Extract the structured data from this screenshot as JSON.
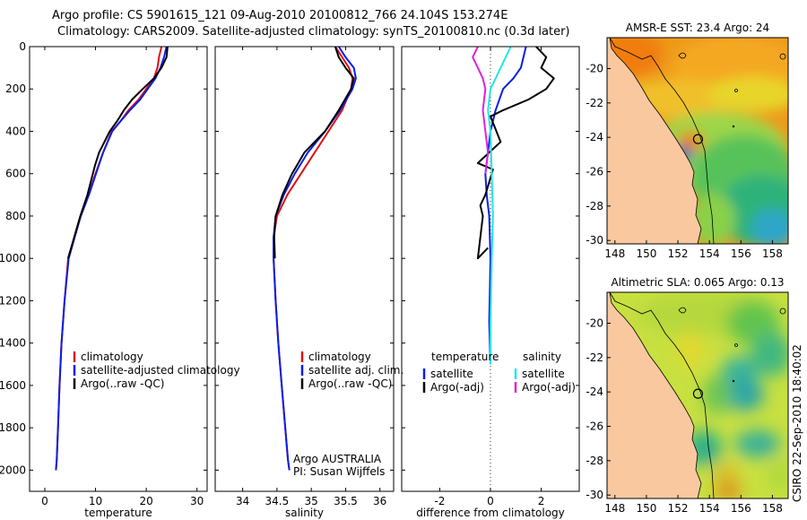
{
  "header": {
    "line1": "Argo profile: CS 5901615_121 09-Aug-2010 20100812_766 24.104S 153.274E",
    "line2": "Climatology: CARS2009. Satellite-adjusted climatology: synTS_20100810.nc (0.3d later)"
  },
  "side_stamp": "CSIRO 22-Sep-2010 18:40:02",
  "colors": {
    "climatology": "#e01010",
    "satellite": "#0a1ee6",
    "argo": "#000000",
    "sal_satellite": "#22e6e6",
    "sal_argo": "#e020e0",
    "land": "#f9c89f"
  },
  "chart_data": [
    {
      "type": "line",
      "id": "temperature",
      "xlabel": "temperature",
      "ylabel": "",
      "xlim": [
        -3,
        32
      ],
      "ylim": [
        2100,
        0
      ],
      "xticks": [
        0,
        10,
        20,
        30
      ],
      "xtick_labels": [
        "0",
        "10",
        "20",
        "30"
      ],
      "yticks": [
        0,
        200,
        400,
        600,
        800,
        1000,
        1200,
        1400,
        1600,
        1800,
        2000
      ],
      "ytick_labels": [
        "0",
        "200",
        "400",
        "600",
        "800",
        "1000",
        "1200",
        "1400",
        "1600",
        "1800",
        "2000"
      ],
      "legend": [
        "climatology",
        "satellite-adjusted climatology",
        "Argo(..raw -QC)"
      ],
      "legend_position": "lower-right",
      "series": [
        {
          "name": "climatology",
          "color": "#e01010",
          "x": [
            23.0,
            22.5,
            22.2,
            21.5,
            20.0,
            18.5,
            16.5,
            15.0,
            13.2,
            11.5,
            10.0,
            8.6,
            7.0,
            5.8,
            4.6,
            3.9,
            3.3,
            2.9,
            2.6,
            2.35,
            2.2
          ],
          "y": [
            0,
            50,
            100,
            150,
            200,
            250,
            300,
            350,
            400,
            500,
            600,
            700,
            800,
            900,
            1000,
            1200,
            1400,
            1600,
            1800,
            1950,
            2000
          ]
        },
        {
          "name": "satellite-adjusted climatology",
          "color": "#0a1ee6",
          "x": [
            24.0,
            23.5,
            22.8,
            21.8,
            20.3,
            18.8,
            16.8,
            15.0,
            13.3,
            11.5,
            10.1,
            8.7,
            7.1,
            5.9,
            4.7,
            3.9,
            3.3,
            2.9,
            2.6,
            2.35,
            2.2
          ],
          "y": [
            0,
            50,
            100,
            150,
            200,
            250,
            300,
            350,
            400,
            500,
            600,
            700,
            800,
            900,
            1000,
            1200,
            1400,
            1600,
            1800,
            1950,
            2000
          ]
        },
        {
          "name": "Argo(..raw -QC)",
          "color": "#000000",
          "x": [
            24.2,
            24.0,
            23.0,
            21.5,
            19.3,
            17.2,
            15.6,
            14.3,
            12.8,
            10.7,
            9.9,
            8.4,
            7.0,
            5.8,
            4.6
          ],
          "y": [
            0,
            50,
            100,
            150,
            200,
            250,
            300,
            350,
            400,
            500,
            560,
            700,
            800,
            900,
            1000
          ]
        }
      ]
    },
    {
      "type": "line",
      "id": "salinity",
      "xlabel": "salinity",
      "xlim": [
        33.6,
        36.2
      ],
      "ylim": [
        2100,
        0
      ],
      "xticks": [
        34,
        34.5,
        35,
        35.5,
        36
      ],
      "xtick_labels": [
        "34",
        "34.5",
        "35",
        "35.5",
        "36"
      ],
      "legend": [
        "climatology",
        "satellite adj. clim.",
        "Argo(..raw -QC)"
      ],
      "legend_position": "lower-right",
      "annotation": [
        "Argo AUSTRALIA",
        "PI: Susan Wijffels"
      ],
      "series": [
        {
          "name": "climatology",
          "color": "#e01010",
          "x": [
            35.35,
            35.45,
            35.55,
            35.6,
            35.58,
            35.45,
            35.25,
            35.05,
            34.85,
            34.65,
            34.5,
            34.45,
            34.45,
            34.48,
            34.52,
            34.57,
            34.62,
            34.66,
            34.68
          ],
          "y": [
            0,
            50,
            100,
            150,
            200,
            300,
            400,
            500,
            600,
            700,
            800,
            900,
            1000,
            1200,
            1400,
            1600,
            1800,
            1950,
            2000
          ]
        },
        {
          "name": "satellite adj. clim.",
          "color": "#0a1ee6",
          "x": [
            35.4,
            35.5,
            35.62,
            35.65,
            35.6,
            35.42,
            35.2,
            34.95,
            34.76,
            34.6,
            34.48,
            34.45,
            34.45,
            34.48,
            34.52,
            34.57,
            34.62,
            34.66,
            34.68
          ],
          "y": [
            0,
            50,
            100,
            150,
            200,
            300,
            400,
            500,
            600,
            700,
            800,
            900,
            1000,
            1200,
            1400,
            1600,
            1800,
            1950,
            2000
          ]
        },
        {
          "name": "Argo(..raw -QC)",
          "color": "#000000",
          "x": [
            35.35,
            35.4,
            35.5,
            35.62,
            35.58,
            35.4,
            35.2,
            34.9,
            34.72,
            34.58,
            34.48,
            34.46,
            34.47
          ],
          "y": [
            0,
            50,
            100,
            150,
            200,
            300,
            400,
            500,
            600,
            700,
            800,
            900,
            1000
          ]
        }
      ]
    },
    {
      "type": "line",
      "id": "difference",
      "xlabel": "difference from climatology",
      "xlim": [
        -3.5,
        3.5
      ],
      "ylim": [
        2100,
        0
      ],
      "xticks": [
        -2,
        0,
        2
      ],
      "xtick_labels": [
        "-2",
        "0",
        "2"
      ],
      "legend": [
        "temperature",
        "satellite",
        "Argo(-adj)",
        "salinity",
        "satellite",
        "Argo(-adj)"
      ],
      "legend_position": "lower-right",
      "series": [
        {
          "name": "temperature satellite",
          "color": "#0a1ee6",
          "x": [
            1.4,
            1.2,
            0.9,
            0.5,
            0.2,
            0.0,
            -0.1,
            -0.2,
            -0.15,
            -0.05,
            0.0,
            -0.05,
            0.0
          ],
          "y": [
            0,
            100,
            150,
            200,
            300,
            400,
            500,
            600,
            700,
            800,
            1000,
            1300,
            1500
          ]
        },
        {
          "name": "temperature Argo(-adj)",
          "color": "#000000",
          "x": [
            1.8,
            2.2,
            2.0,
            2.5,
            2.2,
            1.5,
            0.5,
            0.0,
            0.4,
            -0.5,
            0.1,
            -0.2,
            -0.4,
            -0.3,
            -0.5,
            -0.1
          ],
          "y": [
            0,
            50,
            100,
            150,
            200,
            250,
            300,
            330,
            450,
            550,
            580,
            700,
            750,
            800,
            1000,
            950
          ]
        },
        {
          "name": "salinity satellite",
          "color": "#22e6e6",
          "x": [
            0.8,
            0.6,
            0.4,
            0.2,
            0.0,
            -0.1,
            0.0,
            0.05,
            0.1,
            0.05,
            0.0,
            0.0
          ],
          "y": [
            0,
            50,
            100,
            150,
            200,
            300,
            400,
            600,
            800,
            1000,
            1300,
            1500
          ]
        },
        {
          "name": "salinity Argo(-adj)",
          "color": "#e020e0",
          "x": [
            -0.5,
            -0.7,
            -0.5,
            -0.3,
            -0.2,
            -0.3,
            -0.2,
            -0.1,
            -0.2
          ],
          "y": [
            0,
            50,
            100,
            150,
            200,
            300,
            400,
            500,
            600
          ]
        }
      ]
    },
    {
      "type": "heatmap",
      "id": "sst_map",
      "title": "AMSR-E SST: 23.4 Argo: 24",
      "xlim": [
        147.5,
        159
      ],
      "ylim": [
        -30.2,
        -18.2
      ],
      "xticks": [
        148,
        150,
        152,
        154,
        156,
        158
      ],
      "xtick_labels": [
        "148",
        "150",
        "152",
        "154",
        "156",
        "158"
      ],
      "yticks": [
        -20,
        -22,
        -24,
        -26,
        -28,
        -30
      ],
      "ytick_labels": [
        "-20",
        "-22",
        "-24",
        "-26",
        "-28",
        "-30"
      ],
      "argo_position": {
        "lon": 153.274,
        "lat": -24.104
      }
    },
    {
      "type": "heatmap",
      "id": "sla_map",
      "title": "Altimetric SLA: 0.065 Argo: 0.13",
      "xlim": [
        147.5,
        159
      ],
      "ylim": [
        -30.2,
        -18.2
      ],
      "xticks": [
        148,
        150,
        152,
        154,
        156,
        158
      ],
      "xtick_labels": [
        "148",
        "150",
        "152",
        "154",
        "156",
        "158"
      ],
      "yticks": [
        -20,
        -22,
        -24,
        -26,
        -28,
        -30
      ],
      "ytick_labels": [
        "-20",
        "-22",
        "-24",
        "-26",
        "-28",
        "-30"
      ],
      "argo_position": {
        "lon": 153.274,
        "lat": -24.104
      }
    }
  ]
}
